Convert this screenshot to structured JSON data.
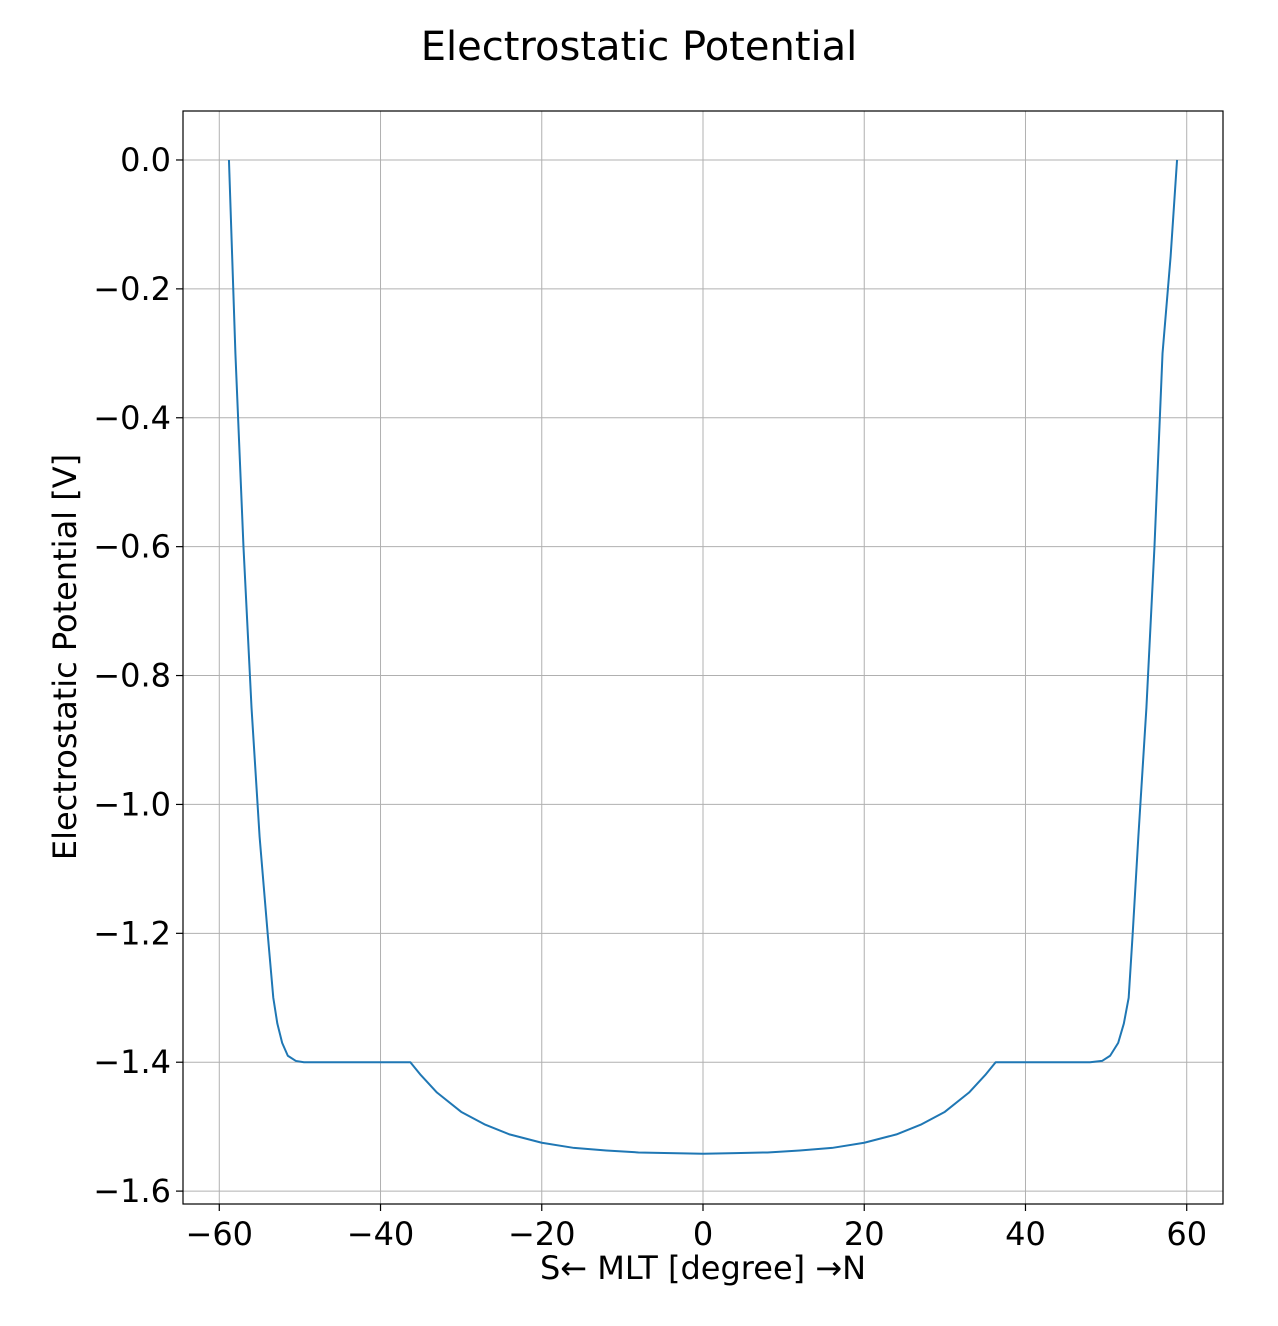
{
  "chart_data": {
    "type": "line",
    "title": "Electrostatic Potential",
    "xlabel": "S← MLT [degree] →N",
    "ylabel": "Electrostatic Potential [V]",
    "xlim": [
      -64.5,
      64.5
    ],
    "ylim": [
      -1.62,
      0.076
    ],
    "xticks": [
      -60,
      -40,
      -20,
      0,
      20,
      40,
      60
    ],
    "xtick_labels": [
      "−60",
      "−40",
      "−20",
      "0",
      "20",
      "40",
      "60"
    ],
    "yticks": [
      0.0,
      -0.2,
      -0.4,
      -0.6,
      -0.8,
      -1.0,
      -1.2,
      -1.4,
      -1.6
    ],
    "ytick_labels": [
      "0.0",
      "−0.2",
      "−0.4",
      "−0.6",
      "−0.8",
      "−1.0",
      "−1.2",
      "−1.4",
      "−1.6"
    ],
    "grid": true,
    "series_color": "#1f77b4",
    "series": [
      {
        "x": [
          -58.8,
          -58.0,
          -57.0,
          -56.0,
          -55.0,
          -54.0,
          -53.3,
          -52.8,
          -52.2,
          -51.5,
          -50.5,
          -49.5,
          -48.0,
          -45.0,
          -40.0,
          -36.3,
          -35.0,
          -33.0,
          -30.0,
          -27.0,
          -24.0,
          -20.0,
          -16.0,
          -12.0,
          -8.0,
          -4.0,
          0.0,
          4.0,
          8.0,
          12.0,
          16.0,
          20.0,
          24.0,
          27.0,
          30.0,
          33.0,
          35.0,
          36.3,
          40.0,
          45.0,
          48.0,
          49.5,
          50.5,
          51.5,
          52.2,
          52.8,
          53.3,
          54.0,
          55.0,
          56.0,
          57.0,
          58.0,
          58.8
        ],
        "y": [
          0.0,
          -0.3,
          -0.6,
          -0.85,
          -1.05,
          -1.2,
          -1.3,
          -1.34,
          -1.37,
          -1.39,
          -1.398,
          -1.4,
          -1.4,
          -1.4,
          -1.4,
          -1.4,
          -1.42,
          -1.447,
          -1.477,
          -1.497,
          -1.512,
          -1.525,
          -1.533,
          -1.537,
          -1.54,
          -1.541,
          -1.542,
          -1.541,
          -1.54,
          -1.537,
          -1.533,
          -1.525,
          -1.512,
          -1.497,
          -1.477,
          -1.447,
          -1.42,
          -1.4,
          -1.4,
          -1.4,
          -1.4,
          -1.398,
          -1.39,
          -1.37,
          -1.34,
          -1.3,
          -1.2,
          -1.05,
          -0.85,
          -0.6,
          -0.3,
          -0.15,
          0.0
        ]
      }
    ]
  }
}
